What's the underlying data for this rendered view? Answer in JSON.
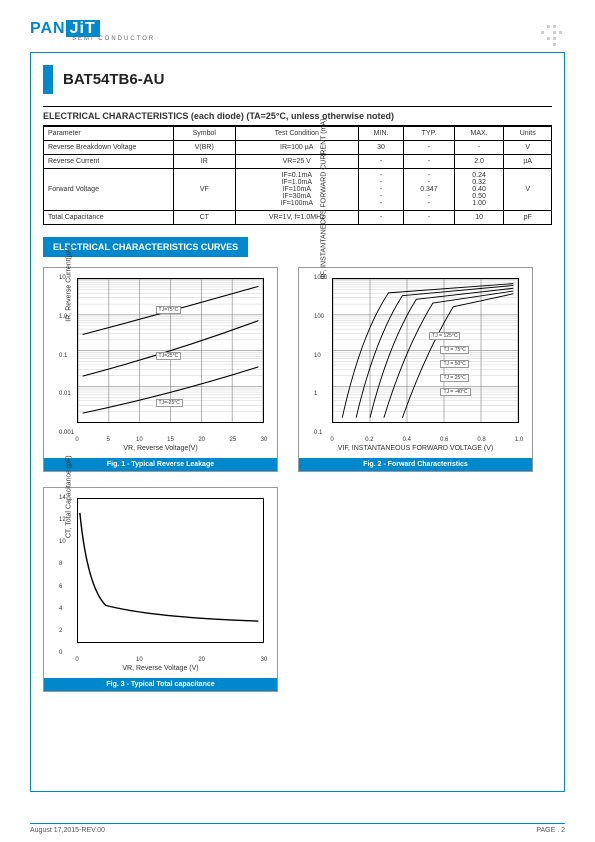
{
  "logo": {
    "pan": "PAN",
    "jit": "JiT",
    "sub": "SEMI CONDUCTOR"
  },
  "part_number": "BAT54TB6-AU",
  "section_title": "ELECTRICAL CHARACTERISTICS (each diode) (TA=25°C, unless otherwise noted)",
  "table": {
    "headers": [
      "Parameter",
      "Symbol",
      "Test Condition",
      "MIN.",
      "TYP.",
      "MAX.",
      "Units"
    ],
    "rows": [
      {
        "p": "Reverse Breakdown Voltage",
        "s": "V(BR)",
        "tc": "IR=100 µA",
        "min": "30",
        "typ": "-",
        "max": "-",
        "u": "V"
      },
      {
        "p": "Reverse Current",
        "s": "IR",
        "tc": "VR=25 V",
        "min": "-",
        "typ": "-",
        "max": "2.0",
        "u": "µA"
      },
      {
        "p": "Forward Voltage",
        "s": "VF",
        "tc": "IF=0.1mA\nIF=1.0mA\nIF=10mA\nIF=30mA\nIF=100mA",
        "min": "-\n-\n-\n-\n-",
        "typ": "-\n-\n0.347\n-\n-",
        "max": "0.24\n0.32\n0.40\n0.50\n1.00",
        "u": "V"
      },
      {
        "p": "Total Capacitance",
        "s": "CT",
        "tc": "VR=1V, f=1.0MHz",
        "min": "-",
        "typ": "-",
        "max": "10",
        "u": "pF"
      }
    ]
  },
  "curves_label": "ELECTRICAL CHARACTERISTICS CURVES",
  "fig1": {
    "caption": "Fig. 1 - Typical Reverse Leakage",
    "xaxis": "VR, Reverse Voltage(V)",
    "yaxis": "IR, Reverse Current(µA)",
    "xticks": [
      "0",
      "5",
      "10",
      "15",
      "20",
      "25",
      "30"
    ],
    "yticks": [
      "0.001",
      "0.01",
      "0.1",
      "1.0",
      "10"
    ],
    "temps": [
      "TJ=75°C",
      "TJ=25°C",
      "TJ=-25°C"
    ]
  },
  "fig2": {
    "caption": "Fig. 2 - Forward Characteristics",
    "xaxis": "VIF, INSTANTANEOUS FORWARD VOLTAGE (V)",
    "yaxis": "IIF, INSTANTANEOUS FORWARD CURRENT (mA)",
    "xticks": [
      "0",
      "0.2",
      "0.4",
      "0.6",
      "0.8",
      "1.0"
    ],
    "yticks": [
      "0.1",
      "1",
      "10",
      "100",
      "1000"
    ],
    "temps": [
      "TJ = 125°C",
      "TJ = 75°C",
      "TJ = 50°C",
      "TJ = 25°C",
      "TJ = -40°C"
    ]
  },
  "fig3": {
    "caption": "Fig. 3 - Typical Total capacitance",
    "xaxis": "VR, Reverse Voltage (V)",
    "yaxis": "CT, Total Capacitance (pF)",
    "xticks": [
      "0",
      "10",
      "20",
      "30"
    ],
    "yticks": [
      "0",
      "2",
      "4",
      "6",
      "8",
      "10",
      "12",
      "14"
    ]
  },
  "footer": {
    "date": "August 17,2015-REV.00",
    "page": "PAGE . 2"
  }
}
